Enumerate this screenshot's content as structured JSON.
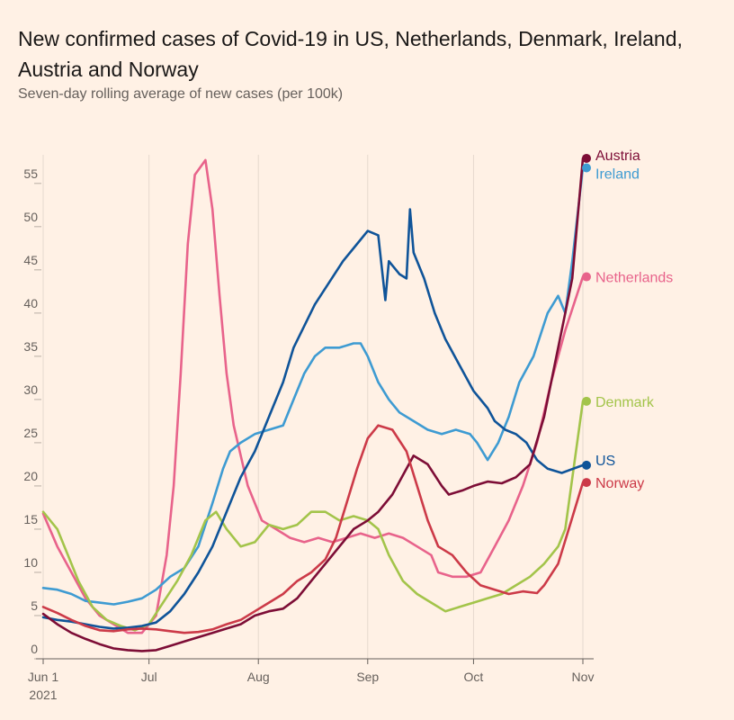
{
  "title": "New confirmed cases of Covid-19 in US, Netherlands, Denmark, Ireland, Austria and Norway",
  "subtitle": "Seven-day rolling average of new cases (per 100k)",
  "chart_data": {
    "type": "line",
    "title": "New confirmed cases of Covid-19 in US, Netherlands, Denmark, Ireland, Austria and Norway",
    "subtitle": "Seven-day rolling average of new cases (per 100k)",
    "xlabel": "",
    "ylabel": "",
    "x_range": [
      "2021-06-01",
      "2021-11-01"
    ],
    "ylim": [
      0,
      58
    ],
    "y_ticks": [
      0,
      5,
      10,
      15,
      20,
      25,
      30,
      35,
      40,
      45,
      50,
      55
    ],
    "x_ticks": [
      {
        "date": "2021-06-01",
        "label": "Jun 1",
        "sublabel": "2021"
      },
      {
        "date": "2021-07-01",
        "label": "Jul",
        "sublabel": ""
      },
      {
        "date": "2021-08-01",
        "label": "Aug",
        "sublabel": ""
      },
      {
        "date": "2021-09-01",
        "label": "Sep",
        "sublabel": ""
      },
      {
        "date": "2021-10-01",
        "label": "Oct",
        "sublabel": ""
      },
      {
        "date": "2021-11-01",
        "label": "Nov",
        "sublabel": ""
      }
    ],
    "grid": "vertical",
    "legend": "direct labels at line ends (right)",
    "series": [
      {
        "name": "Netherlands",
        "color": "#e8638b",
        "points": [
          [
            "2021-06-01",
            16.8
          ],
          [
            "2021-06-05",
            13
          ],
          [
            "2021-06-09",
            10
          ],
          [
            "2021-06-13",
            7
          ],
          [
            "2021-06-17",
            5
          ],
          [
            "2021-06-21",
            4
          ],
          [
            "2021-06-25",
            3
          ],
          [
            "2021-06-29",
            3
          ],
          [
            "2021-07-03",
            5
          ],
          [
            "2021-07-06",
            12
          ],
          [
            "2021-07-08",
            20
          ],
          [
            "2021-07-10",
            33
          ],
          [
            "2021-07-12",
            48
          ],
          [
            "2021-07-14",
            56
          ],
          [
            "2021-07-17",
            57.7
          ],
          [
            "2021-07-19",
            52
          ],
          [
            "2021-07-21",
            42
          ],
          [
            "2021-07-23",
            33
          ],
          [
            "2021-07-25",
            27
          ],
          [
            "2021-07-29",
            20
          ],
          [
            "2021-08-02",
            16
          ],
          [
            "2021-08-06",
            15
          ],
          [
            "2021-08-10",
            14
          ],
          [
            "2021-08-14",
            13.5
          ],
          [
            "2021-08-18",
            14
          ],
          [
            "2021-08-22",
            13.5
          ],
          [
            "2021-08-26",
            14
          ],
          [
            "2021-08-30",
            14.5
          ],
          [
            "2021-09-03",
            14
          ],
          [
            "2021-09-07",
            14.5
          ],
          [
            "2021-09-11",
            14
          ],
          [
            "2021-09-15",
            13
          ],
          [
            "2021-09-19",
            12
          ],
          [
            "2021-09-21",
            10
          ],
          [
            "2021-09-25",
            9.5
          ],
          [
            "2021-09-29",
            9.5
          ],
          [
            "2021-10-03",
            10
          ],
          [
            "2021-10-07",
            13
          ],
          [
            "2021-10-11",
            16
          ],
          [
            "2021-10-15",
            20
          ],
          [
            "2021-10-19",
            25
          ],
          [
            "2021-10-23",
            32
          ],
          [
            "2021-10-27",
            38
          ],
          [
            "2021-11-01",
            44.2
          ]
        ]
      },
      {
        "name": "Ireland",
        "color": "#3e9bd2",
        "points": [
          [
            "2021-06-01",
            8.2
          ],
          [
            "2021-06-05",
            8
          ],
          [
            "2021-06-09",
            7.5
          ],
          [
            "2021-06-13",
            6.7
          ],
          [
            "2021-06-17",
            6.5
          ],
          [
            "2021-06-21",
            6.3
          ],
          [
            "2021-06-25",
            6.6
          ],
          [
            "2021-06-29",
            7
          ],
          [
            "2021-07-03",
            8
          ],
          [
            "2021-07-07",
            9.5
          ],
          [
            "2021-07-11",
            10.5
          ],
          [
            "2021-07-15",
            13
          ],
          [
            "2021-07-19",
            18
          ],
          [
            "2021-07-22",
            22
          ],
          [
            "2021-07-24",
            24
          ],
          [
            "2021-07-27",
            25
          ],
          [
            "2021-07-31",
            26
          ],
          [
            "2021-08-04",
            26.5
          ],
          [
            "2021-08-08",
            27
          ],
          [
            "2021-08-11",
            30
          ],
          [
            "2021-08-14",
            33
          ],
          [
            "2021-08-17",
            35
          ],
          [
            "2021-08-20",
            36
          ],
          [
            "2021-08-24",
            36
          ],
          [
            "2021-08-28",
            36.5
          ],
          [
            "2021-08-30",
            36.5
          ],
          [
            "2021-09-01",
            35
          ],
          [
            "2021-09-04",
            32
          ],
          [
            "2021-09-07",
            30
          ],
          [
            "2021-09-10",
            28.5
          ],
          [
            "2021-09-14",
            27.5
          ],
          [
            "2021-09-18",
            26.5
          ],
          [
            "2021-09-22",
            26
          ],
          [
            "2021-09-26",
            26.5
          ],
          [
            "2021-09-30",
            26
          ],
          [
            "2021-10-02",
            25
          ],
          [
            "2021-10-05",
            23
          ],
          [
            "2021-10-08",
            25
          ],
          [
            "2021-10-11",
            28
          ],
          [
            "2021-10-14",
            32
          ],
          [
            "2021-10-18",
            35
          ],
          [
            "2021-10-22",
            40
          ],
          [
            "2021-10-25",
            42
          ],
          [
            "2021-10-27",
            40
          ],
          [
            "2021-10-29",
            46
          ],
          [
            "2021-11-01",
            56.8
          ]
        ]
      },
      {
        "name": "Denmark",
        "color": "#a3c44a",
        "points": [
          [
            "2021-06-01",
            17
          ],
          [
            "2021-06-05",
            15
          ],
          [
            "2021-06-08",
            12
          ],
          [
            "2021-06-11",
            9
          ],
          [
            "2021-06-15",
            6
          ],
          [
            "2021-06-19",
            4.5
          ],
          [
            "2021-06-23",
            3.8
          ],
          [
            "2021-06-27",
            3.3
          ],
          [
            "2021-07-01",
            4
          ],
          [
            "2021-07-05",
            6.5
          ],
          [
            "2021-07-09",
            9
          ],
          [
            "2021-07-13",
            12
          ],
          [
            "2021-07-17",
            16
          ],
          [
            "2021-07-20",
            17
          ],
          [
            "2021-07-23",
            15
          ],
          [
            "2021-07-27",
            13
          ],
          [
            "2021-07-31",
            13.5
          ],
          [
            "2021-08-04",
            15.5
          ],
          [
            "2021-08-08",
            15
          ],
          [
            "2021-08-12",
            15.5
          ],
          [
            "2021-08-16",
            17
          ],
          [
            "2021-08-20",
            17
          ],
          [
            "2021-08-24",
            16
          ],
          [
            "2021-08-28",
            16.5
          ],
          [
            "2021-09-01",
            16
          ],
          [
            "2021-09-04",
            15
          ],
          [
            "2021-09-07",
            12
          ],
          [
            "2021-09-11",
            9
          ],
          [
            "2021-09-15",
            7.5
          ],
          [
            "2021-09-19",
            6.5
          ],
          [
            "2021-09-23",
            5.5
          ],
          [
            "2021-09-27",
            6
          ],
          [
            "2021-10-01",
            6.5
          ],
          [
            "2021-10-05",
            7
          ],
          [
            "2021-10-09",
            7.5
          ],
          [
            "2021-10-13",
            8.5
          ],
          [
            "2021-10-17",
            9.5
          ],
          [
            "2021-10-21",
            11
          ],
          [
            "2021-10-25",
            13
          ],
          [
            "2021-10-27",
            15
          ],
          [
            "2021-11-01",
            29.8
          ]
        ]
      },
      {
        "name": "US",
        "color": "#0f5499",
        "points": [
          [
            "2021-06-01",
            4.8
          ],
          [
            "2021-06-05",
            4.5
          ],
          [
            "2021-06-09",
            4.3
          ],
          [
            "2021-06-13",
            4
          ],
          [
            "2021-06-17",
            3.7
          ],
          [
            "2021-06-21",
            3.5
          ],
          [
            "2021-06-25",
            3.6
          ],
          [
            "2021-06-29",
            3.8
          ],
          [
            "2021-07-03",
            4.2
          ],
          [
            "2021-07-07",
            5.5
          ],
          [
            "2021-07-11",
            7.5
          ],
          [
            "2021-07-15",
            10
          ],
          [
            "2021-07-19",
            13
          ],
          [
            "2021-07-23",
            17
          ],
          [
            "2021-07-27",
            21
          ],
          [
            "2021-07-31",
            24
          ],
          [
            "2021-08-04",
            28
          ],
          [
            "2021-08-08",
            32
          ],
          [
            "2021-08-11",
            36
          ],
          [
            "2021-08-14",
            38.5
          ],
          [
            "2021-08-17",
            41
          ],
          [
            "2021-08-21",
            43.5
          ],
          [
            "2021-08-25",
            46
          ],
          [
            "2021-08-29",
            48
          ],
          [
            "2021-09-01",
            49.5
          ],
          [
            "2021-09-04",
            49
          ],
          [
            "2021-09-06",
            41.5
          ],
          [
            "2021-09-07",
            46
          ],
          [
            "2021-09-10",
            44.5
          ],
          [
            "2021-09-12",
            44
          ],
          [
            "2021-09-13",
            52
          ],
          [
            "2021-09-14",
            47
          ],
          [
            "2021-09-17",
            44
          ],
          [
            "2021-09-20",
            40
          ],
          [
            "2021-09-23",
            37
          ],
          [
            "2021-09-27",
            34
          ],
          [
            "2021-10-01",
            31
          ],
          [
            "2021-10-05",
            29
          ],
          [
            "2021-10-07",
            27.5
          ],
          [
            "2021-10-10",
            26.5
          ],
          [
            "2021-10-13",
            26
          ],
          [
            "2021-10-16",
            25
          ],
          [
            "2021-10-19",
            23
          ],
          [
            "2021-10-22",
            22
          ],
          [
            "2021-10-26",
            21.5
          ],
          [
            "2021-11-01",
            22.4
          ]
        ]
      },
      {
        "name": "Austria",
        "color": "#7d0d36",
        "points": [
          [
            "2021-06-01",
            5.2
          ],
          [
            "2021-06-05",
            4
          ],
          [
            "2021-06-09",
            3
          ],
          [
            "2021-06-13",
            2.3
          ],
          [
            "2021-06-17",
            1.7
          ],
          [
            "2021-06-21",
            1.2
          ],
          [
            "2021-06-25",
            1
          ],
          [
            "2021-06-29",
            0.9
          ],
          [
            "2021-07-03",
            1
          ],
          [
            "2021-07-07",
            1.5
          ],
          [
            "2021-07-11",
            2
          ],
          [
            "2021-07-15",
            2.5
          ],
          [
            "2021-07-19",
            3
          ],
          [
            "2021-07-23",
            3.5
          ],
          [
            "2021-07-27",
            4
          ],
          [
            "2021-07-31",
            5
          ],
          [
            "2021-08-04",
            5.5
          ],
          [
            "2021-08-08",
            5.8
          ],
          [
            "2021-08-12",
            7
          ],
          [
            "2021-08-16",
            9
          ],
          [
            "2021-08-20",
            11
          ],
          [
            "2021-08-24",
            13
          ],
          [
            "2021-08-28",
            15
          ],
          [
            "2021-09-01",
            16
          ],
          [
            "2021-09-04",
            17
          ],
          [
            "2021-09-08",
            19
          ],
          [
            "2021-09-12",
            22
          ],
          [
            "2021-09-14",
            23.5
          ],
          [
            "2021-09-18",
            22.5
          ],
          [
            "2021-09-22",
            20
          ],
          [
            "2021-09-24",
            19
          ],
          [
            "2021-09-28",
            19.5
          ],
          [
            "2021-10-01",
            20
          ],
          [
            "2021-10-05",
            20.5
          ],
          [
            "2021-10-09",
            20.3
          ],
          [
            "2021-10-13",
            21
          ],
          [
            "2021-10-17",
            22.5
          ],
          [
            "2021-10-21",
            28
          ],
          [
            "2021-10-24",
            34
          ],
          [
            "2021-10-27",
            40
          ],
          [
            "2021-10-29",
            44
          ],
          [
            "2021-11-01",
            57.9
          ]
        ]
      },
      {
        "name": "Norway",
        "color": "#cc3a48",
        "points": [
          [
            "2021-06-01",
            6
          ],
          [
            "2021-06-05",
            5.3
          ],
          [
            "2021-06-09",
            4.5
          ],
          [
            "2021-06-13",
            3.8
          ],
          [
            "2021-06-17",
            3.3
          ],
          [
            "2021-06-21",
            3.2
          ],
          [
            "2021-06-25",
            3.4
          ],
          [
            "2021-06-29",
            3.5
          ],
          [
            "2021-07-03",
            3.4
          ],
          [
            "2021-07-07",
            3.2
          ],
          [
            "2021-07-11",
            3
          ],
          [
            "2021-07-15",
            3.1
          ],
          [
            "2021-07-19",
            3.4
          ],
          [
            "2021-07-23",
            4
          ],
          [
            "2021-07-27",
            4.5
          ],
          [
            "2021-07-31",
            5.5
          ],
          [
            "2021-08-04",
            6.5
          ],
          [
            "2021-08-08",
            7.5
          ],
          [
            "2021-08-12",
            9
          ],
          [
            "2021-08-16",
            10
          ],
          [
            "2021-08-20",
            11.5
          ],
          [
            "2021-08-23",
            14
          ],
          [
            "2021-08-26",
            18
          ],
          [
            "2021-08-29",
            22
          ],
          [
            "2021-09-01",
            25.5
          ],
          [
            "2021-09-04",
            27
          ],
          [
            "2021-09-08",
            26.5
          ],
          [
            "2021-09-12",
            24
          ],
          [
            "2021-09-15",
            20
          ],
          [
            "2021-09-18",
            16
          ],
          [
            "2021-09-21",
            13
          ],
          [
            "2021-09-25",
            12
          ],
          [
            "2021-09-29",
            10
          ],
          [
            "2021-10-03",
            8.5
          ],
          [
            "2021-10-07",
            8
          ],
          [
            "2021-10-11",
            7.5
          ],
          [
            "2021-10-15",
            7.8
          ],
          [
            "2021-10-19",
            7.6
          ],
          [
            "2021-10-21",
            8.5
          ],
          [
            "2021-10-25",
            11
          ],
          [
            "2021-10-28",
            15
          ],
          [
            "2021-11-01",
            20.4
          ]
        ]
      }
    ]
  }
}
